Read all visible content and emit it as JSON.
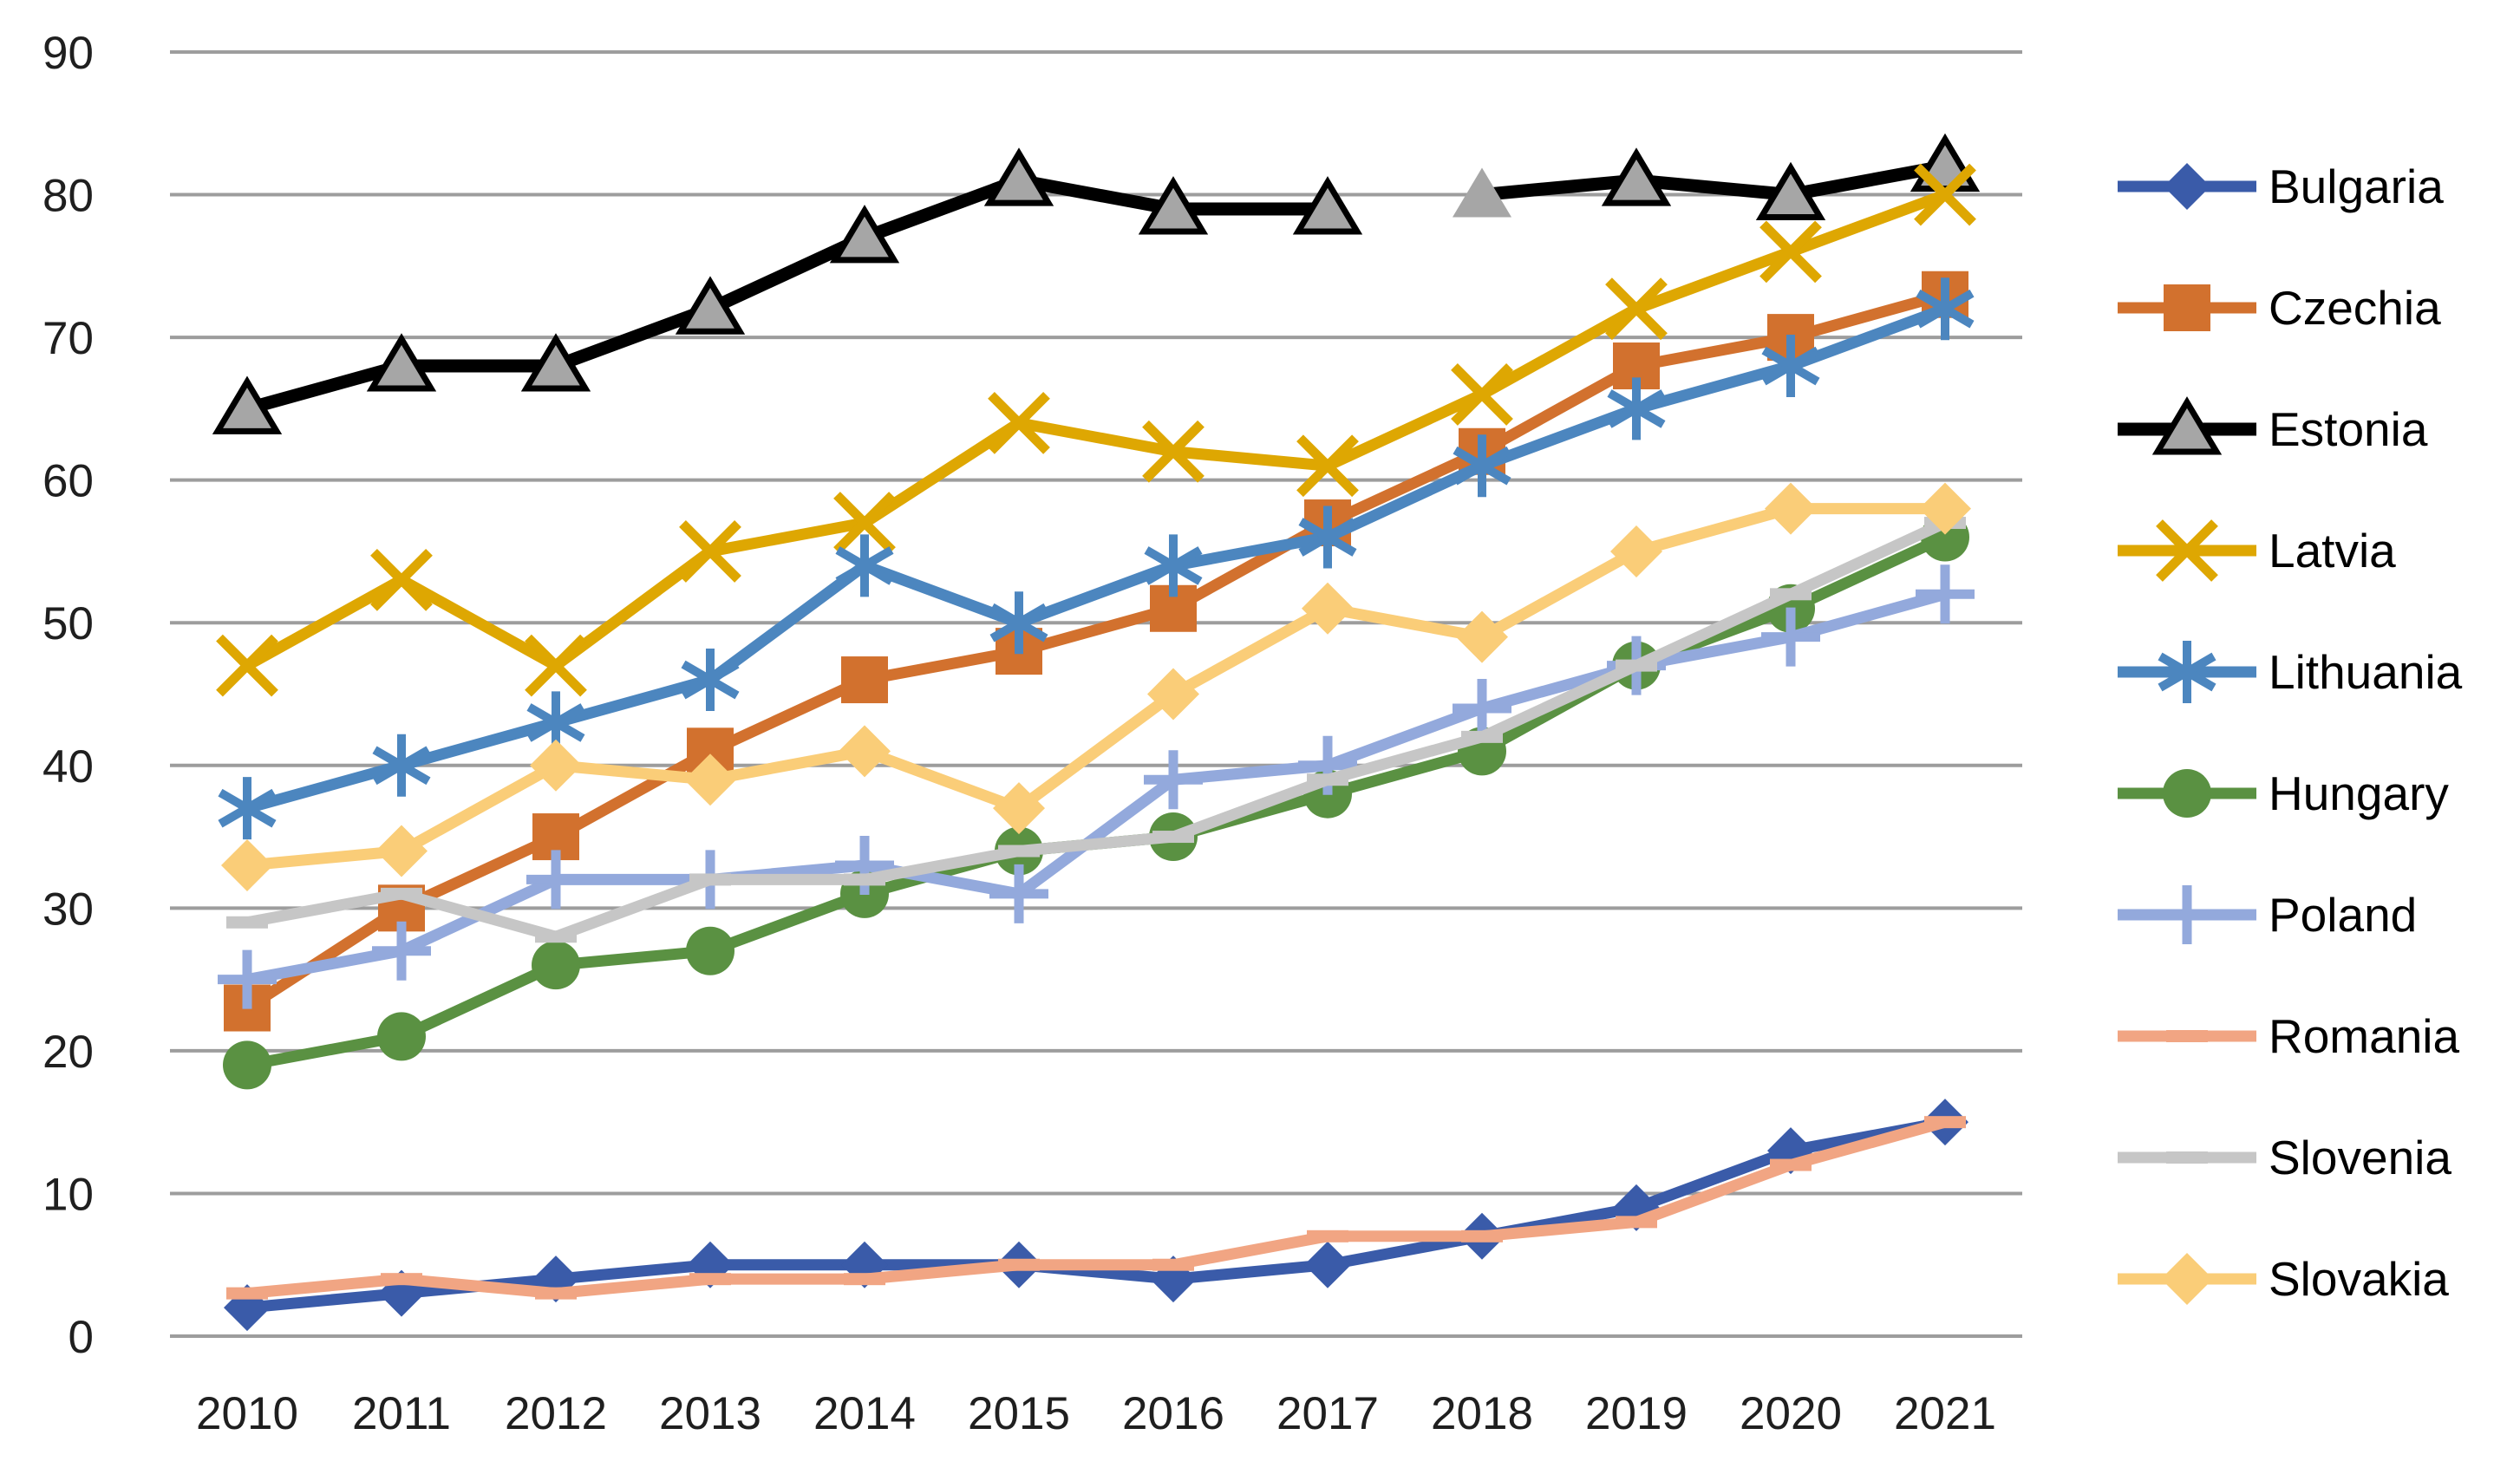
{
  "chart_data": {
    "type": "line",
    "x": [
      "2010",
      "2011",
      "2012",
      "2013",
      "2014",
      "2015",
      "2016",
      "2017",
      "2018",
      "2019",
      "2020",
      "2021"
    ],
    "ylim": [
      0,
      90
    ],
    "ytick_interval": 10,
    "yticks": [
      "0",
      "10",
      "20",
      "30",
      "40",
      "50",
      "60",
      "70",
      "80",
      "90"
    ],
    "grid": "horizontal",
    "legend_position": "right",
    "series": [
      {
        "name": "Bulgaria",
        "color": "#3A5BA9",
        "marker": "diamond",
        "values": [
          2,
          3,
          4,
          5,
          5,
          5,
          4,
          5,
          7,
          9,
          13,
          15
        ]
      },
      {
        "name": "Czechia",
        "color": "#D2712E",
        "marker": "square",
        "values": [
          23,
          30,
          35,
          41,
          46,
          48,
          51,
          57,
          62,
          68,
          70,
          73
        ]
      },
      {
        "name": "Estonia",
        "color": "#000000",
        "marker": "triangle",
        "marker_fill": "#A6A6A6",
        "values": [
          65,
          68,
          68,
          72,
          77,
          81,
          79,
          79,
          80,
          81,
          80,
          82
        ],
        "line_gap_after_index": 7,
        "plain_marker_index": 8
      },
      {
        "name": "Latvia",
        "color": "#DEA702",
        "marker": "x",
        "values": [
          47,
          53,
          47,
          55,
          57,
          64,
          62,
          61,
          66,
          72,
          76,
          80
        ]
      },
      {
        "name": "Lithuania",
        "color": "#4C86BF",
        "marker": "asterisk",
        "values": [
          37,
          40,
          43,
          46,
          54,
          50,
          54,
          56,
          61,
          65,
          68,
          72
        ]
      },
      {
        "name": "Hungary",
        "color": "#5A9142",
        "marker": "circle",
        "values": [
          19,
          21,
          26,
          27,
          31,
          34,
          35,
          38,
          41,
          47,
          51,
          56
        ]
      },
      {
        "name": "Poland",
        "color": "#93A9DC",
        "marker": "plus",
        "values": [
          25,
          27,
          32,
          32,
          33,
          31,
          39,
          40,
          44,
          47,
          49,
          52
        ]
      },
      {
        "name": "Romania",
        "color": "#F1A583",
        "marker": "dash",
        "values": [
          3,
          4,
          3,
          4,
          4,
          5,
          5,
          7,
          7,
          8,
          12,
          15
        ]
      },
      {
        "name": "Slovenia",
        "color": "#C6C6C6",
        "marker": "dash",
        "values": [
          29,
          31,
          28,
          32,
          32,
          34,
          35,
          39,
          42,
          47,
          52,
          57
        ]
      },
      {
        "name": "Slovakia",
        "color": "#FACD78",
        "marker": "diamond",
        "values": [
          33,
          34,
          40,
          39,
          41,
          37,
          45,
          51,
          49,
          55,
          58,
          58
        ]
      }
    ]
  },
  "colors": {
    "gridline": "#9D9D9D",
    "axis_text": "#1F1F1F",
    "background": "#FFFFFF"
  }
}
